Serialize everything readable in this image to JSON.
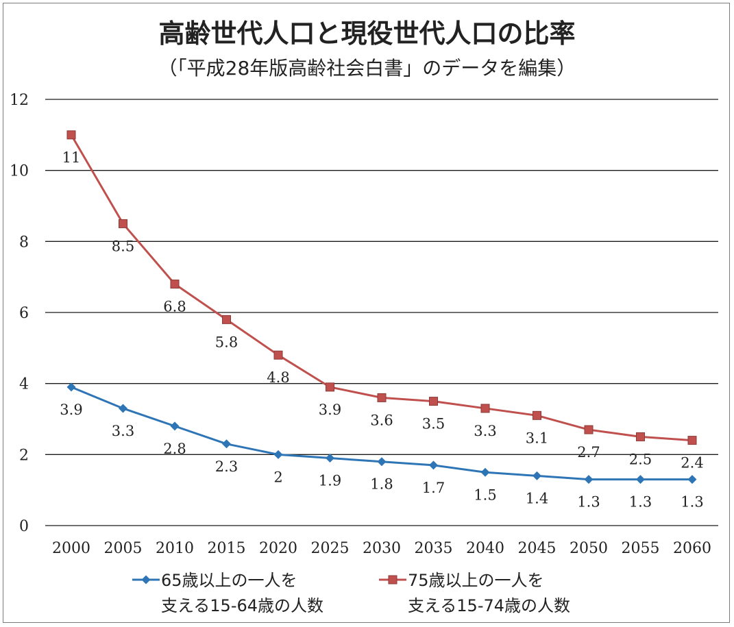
{
  "chart_data": {
    "type": "line",
    "title": "高齢世代人口と現役世代人口の比率",
    "subtitle": "（「平成28年版高齢社会白書」のデータを編集）",
    "xlabel": "",
    "ylabel": "",
    "x": [
      "2000",
      "2005",
      "2010",
      "2015",
      "2020",
      "2025",
      "2030",
      "2035",
      "2040",
      "2045",
      "2050",
      "2055",
      "2060"
    ],
    "ylim": [
      0,
      12
    ],
    "yticks": [
      0,
      2,
      4,
      6,
      8,
      10,
      12
    ],
    "grid": true,
    "legend_position": "bottom",
    "series": [
      {
        "name_line1": "65歳以上の一人を",
        "name_line2": "支える15-64歳の人数",
        "color": "#2e75b6",
        "marker": "diamond",
        "values": [
          3.9,
          3.3,
          2.8,
          2.3,
          2,
          1.9,
          1.8,
          1.7,
          1.5,
          1.4,
          1.3,
          1.3,
          1.3
        ]
      },
      {
        "name_line1": "75歳以上の一人を",
        "name_line2": "支える15-74歳の人数",
        "color": "#c0504d",
        "marker": "square",
        "values": [
          11,
          8.5,
          6.8,
          5.8,
          4.8,
          3.9,
          3.6,
          3.5,
          3.3,
          3.1,
          2.7,
          2.5,
          2.4
        ]
      }
    ]
  }
}
